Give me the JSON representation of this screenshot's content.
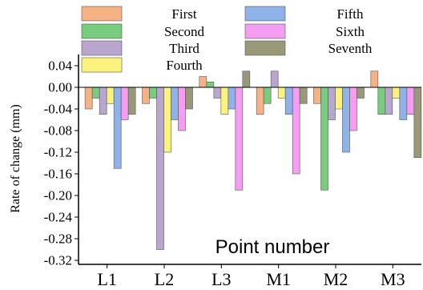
{
  "chart_data": {
    "type": "bar",
    "categories": [
      "L1",
      "L2",
      "L3",
      "M1",
      "M2",
      "M3"
    ],
    "series": [
      {
        "name": "First",
        "color": "#f5b385",
        "values": [
          -0.04,
          -0.03,
          0.02,
          -0.05,
          -0.03,
          0.03
        ]
      },
      {
        "name": "Second",
        "color": "#78cc7d",
        "values": [
          -0.02,
          -0.02,
          0.01,
          -0.03,
          -0.19,
          -0.05
        ]
      },
      {
        "name": "Third",
        "color": "#b8a6cf",
        "values": [
          -0.05,
          -0.3,
          -0.02,
          0.03,
          -0.06,
          -0.05
        ]
      },
      {
        "name": "Fourth",
        "color": "#fcf27e",
        "values": [
          -0.03,
          -0.12,
          -0.05,
          -0.02,
          -0.04,
          -0.02
        ]
      },
      {
        "name": "Fifth",
        "color": "#8fb2e8",
        "values": [
          -0.15,
          -0.06,
          -0.04,
          -0.05,
          -0.12,
          -0.06
        ]
      },
      {
        "name": "Sixth",
        "color": "#f59df0",
        "values": [
          -0.06,
          -0.08,
          -0.19,
          -0.16,
          -0.08,
          -0.05
        ]
      },
      {
        "name": "Seventh",
        "color": "#99997a",
        "values": [
          -0.05,
          -0.04,
          0.03,
          -0.03,
          -0.02,
          -0.13
        ]
      }
    ],
    "yticks": [
      "0.04",
      "0.00",
      "-0.04",
      "-0.08",
      "-0.12",
      "-0.16",
      "-0.20",
      "-0.24",
      "-0.28",
      "-0.32"
    ],
    "ytick_values": [
      0.04,
      0.0,
      -0.04,
      -0.08,
      -0.12,
      -0.16,
      -0.2,
      -0.24,
      -0.28,
      -0.32
    ],
    "ylim": [
      -0.33,
      0.06
    ],
    "ylabel": "Rate of change (mm)",
    "xlabel": "Point number",
    "legend_position": "top"
  }
}
